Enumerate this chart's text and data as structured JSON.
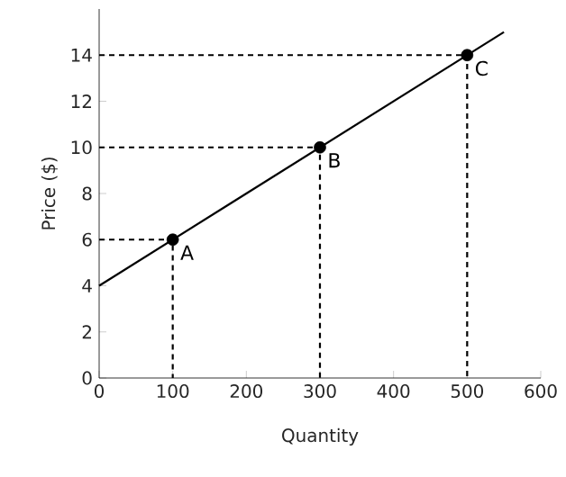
{
  "chart_data": {
    "type": "line",
    "xlabel": "Quantity",
    "ylabel": "Price ($)",
    "xlim": [
      0,
      600
    ],
    "ylim": [
      0,
      16
    ],
    "xticks": [
      0,
      100,
      200,
      300,
      400,
      500,
      600
    ],
    "yticks": [
      0,
      2,
      4,
      6,
      8,
      10,
      12,
      14
    ],
    "grid": false,
    "series": [
      {
        "color": "#000000",
        "x": [
          0,
          550
        ],
        "values": [
          4,
          15
        ],
        "marker": "none",
        "line_style": "solid"
      },
      {
        "type": "scatter",
        "color": "#000000",
        "x": [
          100,
          300,
          500
        ],
        "values": [
          6,
          10,
          14
        ],
        "marker": "circle"
      },
      {
        "color": "#000000",
        "x": [
          0,
          100,
          100
        ],
        "values": [
          6,
          6,
          0
        ],
        "marker": "none",
        "line_style": "dashed"
      },
      {
        "color": "#000000",
        "x": [
          0,
          300,
          300
        ],
        "values": [
          10,
          10,
          0
        ],
        "marker": "none",
        "line_style": "dashed"
      },
      {
        "color": "#000000",
        "x": [
          0,
          500,
          500
        ],
        "values": [
          14,
          14,
          0
        ],
        "marker": "none",
        "line_style": "dashed"
      }
    ],
    "annotations": [
      {
        "text": "A",
        "x": 100,
        "y": 6
      },
      {
        "text": "B",
        "x": 300,
        "y": 10
      },
      {
        "text": "C",
        "x": 500,
        "y": 14
      }
    ]
  }
}
